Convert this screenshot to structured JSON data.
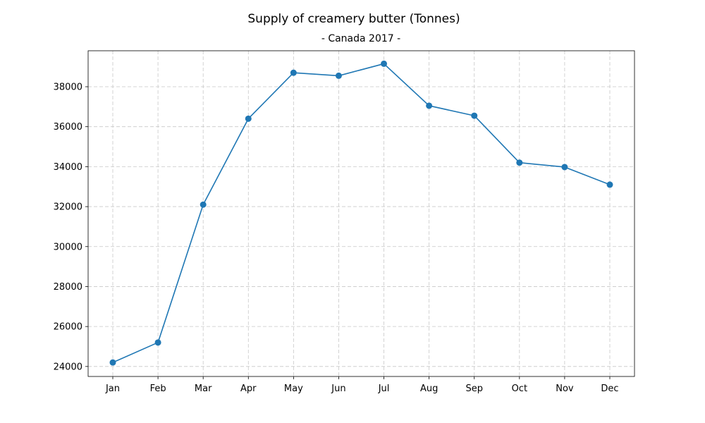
{
  "chart_data": {
    "type": "line",
    "title": "Supply of creamery butter (Tonnes)",
    "subtitle": "- Canada 2017 -",
    "xlabel": "",
    "ylabel": "",
    "categories": [
      "Jan",
      "Feb",
      "Mar",
      "Apr",
      "May",
      "Jun",
      "Jul",
      "Aug",
      "Sep",
      "Oct",
      "Nov",
      "Dec"
    ],
    "series": [
      {
        "values": [
          24200,
          25200,
          32100,
          36400,
          38700,
          38550,
          39150,
          37050,
          36550,
          34200,
          33980,
          33100
        ],
        "color": "#1f77b4"
      }
    ],
    "ylim": [
      23500,
      39800
    ],
    "yticks": [
      24000,
      26000,
      28000,
      30000,
      32000,
      34000,
      36000,
      38000
    ],
    "grid": true,
    "legend": "none"
  }
}
